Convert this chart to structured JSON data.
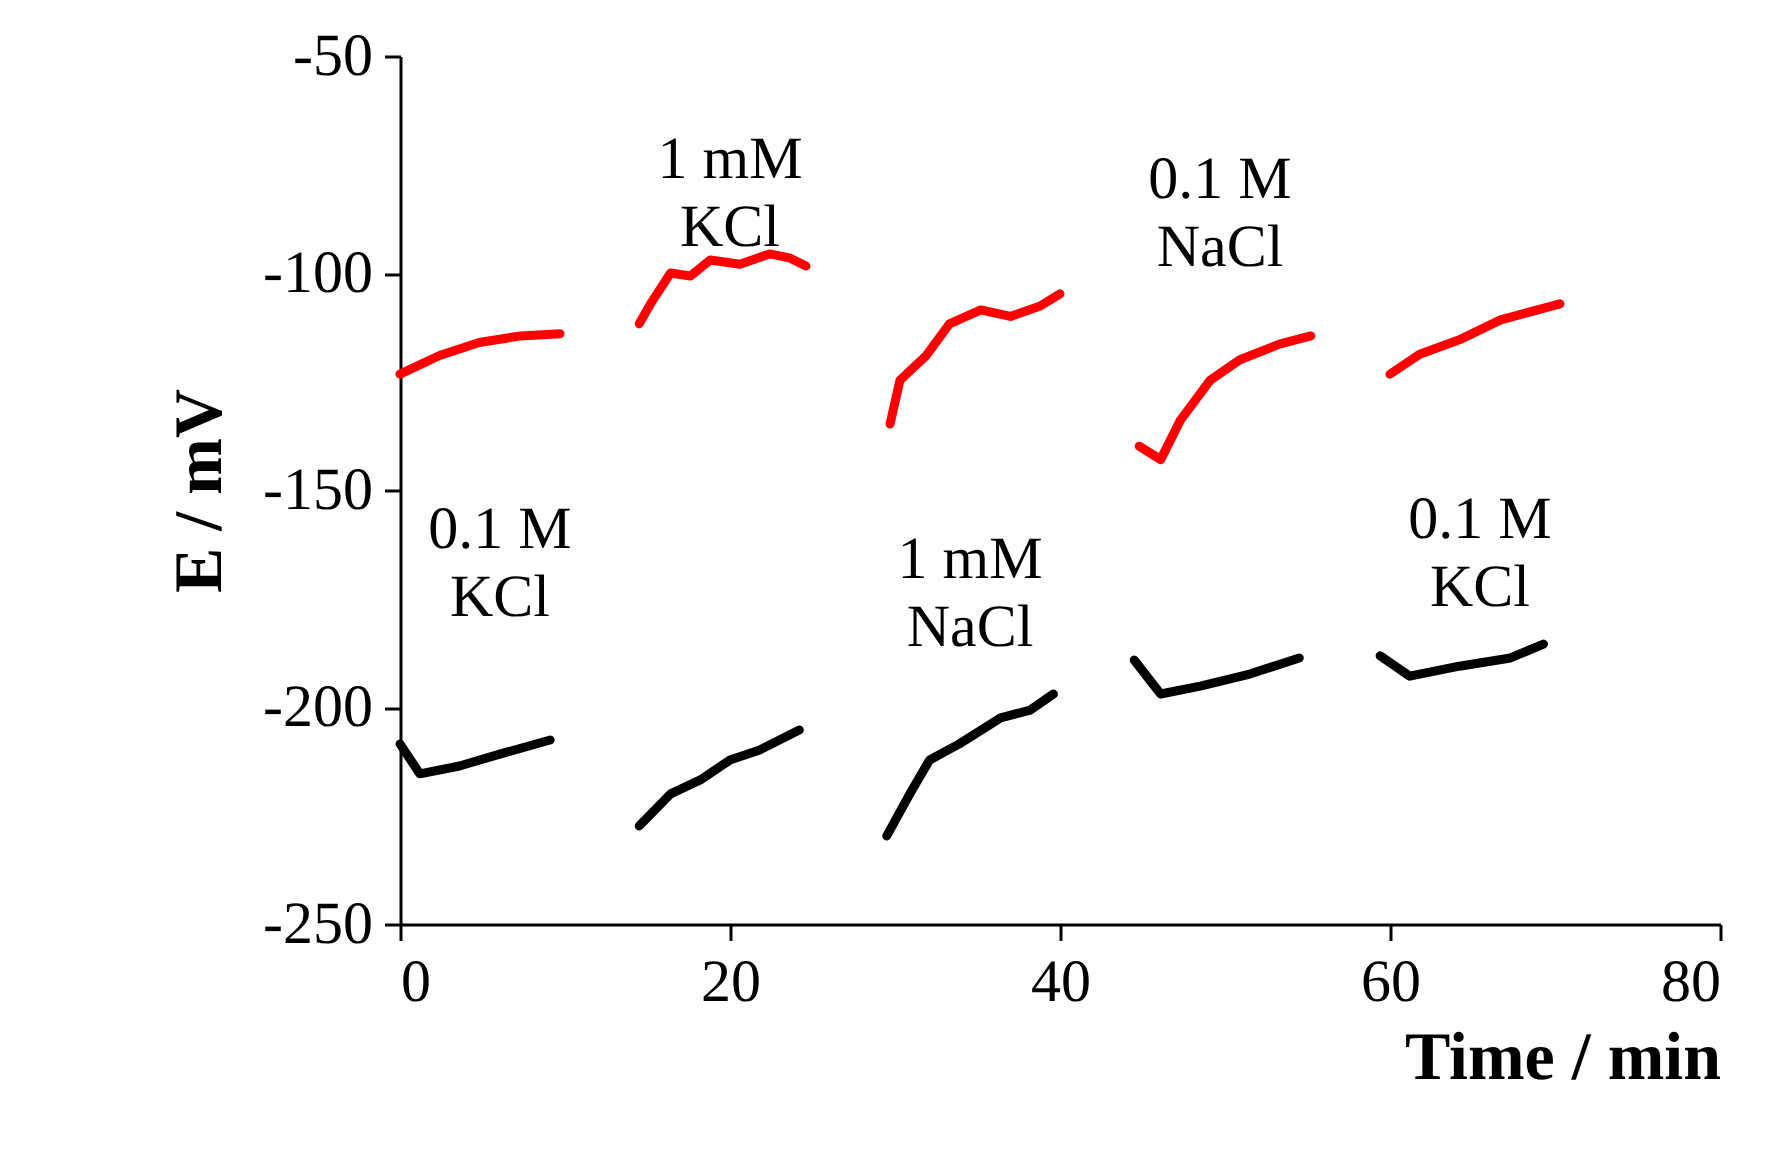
{
  "chart_data": {
    "type": "line",
    "xlabel": "Time / min",
    "ylabel": "E / mV",
    "xlim": [
      0,
      80
    ],
    "xticks": [
      0,
      20,
      40,
      60,
      80
    ],
    "ylim": [
      -250,
      -50
    ],
    "yticks": [
      -250,
      -200,
      -150,
      -100,
      -50
    ],
    "grid": false,
    "legend": false,
    "marker": "none",
    "line_style": "solid",
    "series": [
      {
        "color": "#ff0000",
        "x": [
          0,
          2.4,
          4.8,
          7.3,
          9.7,
          12,
          14.5,
          15.2,
          16.4,
          17.6,
          18.8,
          20.6,
          22.4,
          23.6,
          24.6,
          27,
          29.7,
          30.3,
          31.9,
          33.3,
          35.2,
          37,
          38.8,
          40,
          42,
          44.8,
          46.1,
          47.3,
          49.1,
          50.9,
          53.3,
          55.2,
          57,
          60,
          61.8,
          64.2,
          66.7,
          70.3
        ],
        "values": [
          -123.3,
          -119,
          -116,
          -114.5,
          -114,
          null,
          -111.7,
          -107,
          -100,
          -100.7,
          -97,
          -98,
          -95.6,
          -96.5,
          -98.4,
          null,
          -134.8,
          -124.7,
          -119,
          -111.7,
          -108.5,
          -110,
          -107.6,
          -104.8,
          null,
          -139.9,
          -143,
          -133.9,
          -124.7,
          -120,
          -116.4,
          -114.5,
          null,
          -123.3,
          -118.7,
          -115.4,
          -110.8,
          -107.1
        ]
      },
      {
        "color": "#000000",
        "x": [
          0,
          1.2,
          3.6,
          6.1,
          9.1,
          12,
          14.5,
          16.4,
          18.2,
          20,
          21.8,
          24.2,
          27,
          29.5,
          30.9,
          32.1,
          33.9,
          36.4,
          38.2,
          39.6,
          42,
          44.5,
          46.1,
          48.5,
          51.5,
          54.5,
          57,
          59.4,
          61.2,
          64.2,
          67.3,
          69.3
        ],
        "values": [
          -208.5,
          -215.4,
          -213.6,
          -210.8,
          -207.6,
          null,
          -227.4,
          -220,
          -216.8,
          -212.2,
          -209.9,
          -205.3,
          null,
          -229.7,
          -220,
          -212.2,
          -208.5,
          -202.5,
          -200.7,
          -197,
          null,
          -189.2,
          -197,
          -195.2,
          -192.4,
          -188.7,
          null,
          -188.2,
          -192.9,
          -190.6,
          -188.7,
          -185.5
        ]
      }
    ],
    "annotations": [
      "0.1 M\nKCl",
      "1 mM\nKCl",
      "1 mM\nNaCl",
      "0.1 M\nNaCl",
      "0.1 M\nKCl"
    ]
  }
}
